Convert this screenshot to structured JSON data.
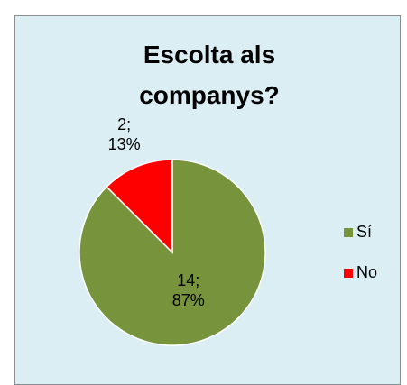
{
  "chart_data": {
    "type": "pie",
    "title": "Escolta als companys?",
    "categories": [
      "Sí",
      "No"
    ],
    "values": [
      14,
      2
    ],
    "value_labels": [
      [
        "14;",
        "87%"
      ],
      [
        "2;",
        "13%"
      ]
    ],
    "colors": [
      "#77933c",
      "#ff0000"
    ],
    "legend": "right"
  }
}
